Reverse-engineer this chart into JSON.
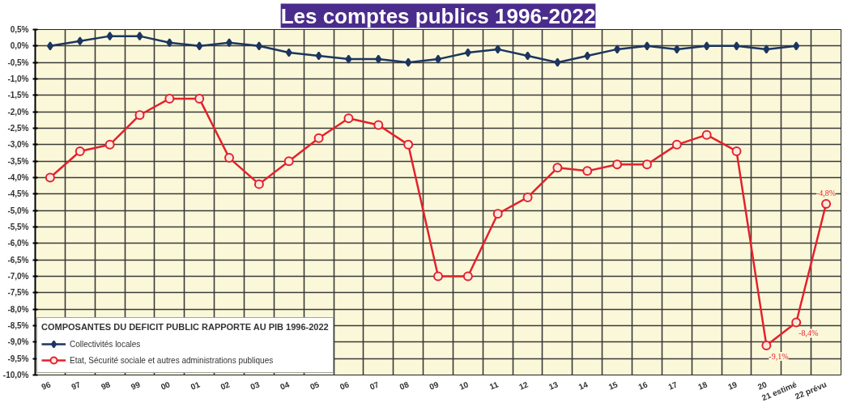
{
  "chart_data": {
    "type": "line",
    "title": "Les comptes publics 1996-2022",
    "legend_title": "COMPOSANTES DU DEFICIT PUBLIC RAPPORTE AU PIB 1996-2022",
    "categories": [
      "96",
      "97",
      "98",
      "99",
      "00",
      "01",
      "02",
      "03",
      "04",
      "05",
      "06",
      "07",
      "08",
      "09",
      "10",
      "11",
      "12",
      "13",
      "14",
      "15",
      "16",
      "17",
      "18",
      "19",
      "20",
      "21 estimé",
      "22 prévu"
    ],
    "series": [
      {
        "name": "Collectivités locales",
        "color": "#1c3660",
        "marker": "diamond",
        "values": [
          0.0,
          0.15,
          0.3,
          0.3,
          0.1,
          0.0,
          0.1,
          0.0,
          -0.2,
          -0.3,
          -0.4,
          -0.4,
          -0.5,
          -0.4,
          -0.2,
          -0.1,
          -0.3,
          -0.5,
          -0.3,
          -0.1,
          0.0,
          -0.1,
          0.0,
          0.0,
          -0.1,
          0.0,
          null
        ]
      },
      {
        "name": "Etat, Sécurité sociale et autres administrations publiques",
        "color": "#e3222b",
        "marker": "circle",
        "values": [
          -4.0,
          -3.2,
          -3.0,
          -2.1,
          -1.6,
          -1.6,
          -3.4,
          -4.2,
          -3.5,
          -2.8,
          -2.2,
          -2.4,
          -3.0,
          -7.0,
          -7.0,
          -5.1,
          -4.6,
          -3.7,
          -3.8,
          -3.6,
          -3.6,
          -3.0,
          -2.7,
          -3.2,
          -9.1,
          -8.4,
          -4.8
        ],
        "value_labels": [
          null,
          null,
          null,
          null,
          null,
          null,
          null,
          null,
          null,
          null,
          null,
          null,
          null,
          null,
          null,
          null,
          null,
          null,
          null,
          null,
          null,
          null,
          null,
          null,
          "-9,1%",
          "-8,4%",
          "-4,8%"
        ]
      }
    ],
    "ylim": [
      -10.0,
      0.5
    ],
    "yticks": [
      {
        "value": 0.5,
        "label": "0,5%"
      },
      {
        "value": 0.0,
        "label": "0,0%"
      },
      {
        "value": -0.5,
        "label": "-0,5%"
      },
      {
        "value": -1.0,
        "label": "-1,0%"
      },
      {
        "value": -1.5,
        "label": "-1,5%"
      },
      {
        "value": -2.0,
        "label": "-2,0%"
      },
      {
        "value": -2.5,
        "label": "-2,5%"
      },
      {
        "value": -3.0,
        "label": "-3,0%"
      },
      {
        "value": -3.5,
        "label": "-3,5%"
      },
      {
        "value": -4.0,
        "label": "-4,0%"
      },
      {
        "value": -4.5,
        "label": "-4,5%"
      },
      {
        "value": -5.0,
        "label": "-5,0%"
      },
      {
        "value": -5.5,
        "label": "-5,5%"
      },
      {
        "value": -6.0,
        "label": "-6,0%"
      },
      {
        "value": -6.5,
        "label": "-6,5%"
      },
      {
        "value": -7.0,
        "label": "-7,0%"
      },
      {
        "value": -7.5,
        "label": "-7,5%"
      },
      {
        "value": -8.0,
        "label": "-8,0%"
      },
      {
        "value": -8.5,
        "label": "-8,5%"
      },
      {
        "value": -9.0,
        "label": "-9,0%"
      },
      {
        "value": -9.5,
        "label": "-9,5%"
      },
      {
        "value": -10.0,
        "label": "-10,0%"
      }
    ],
    "grid": true,
    "legend": "bottom left"
  }
}
